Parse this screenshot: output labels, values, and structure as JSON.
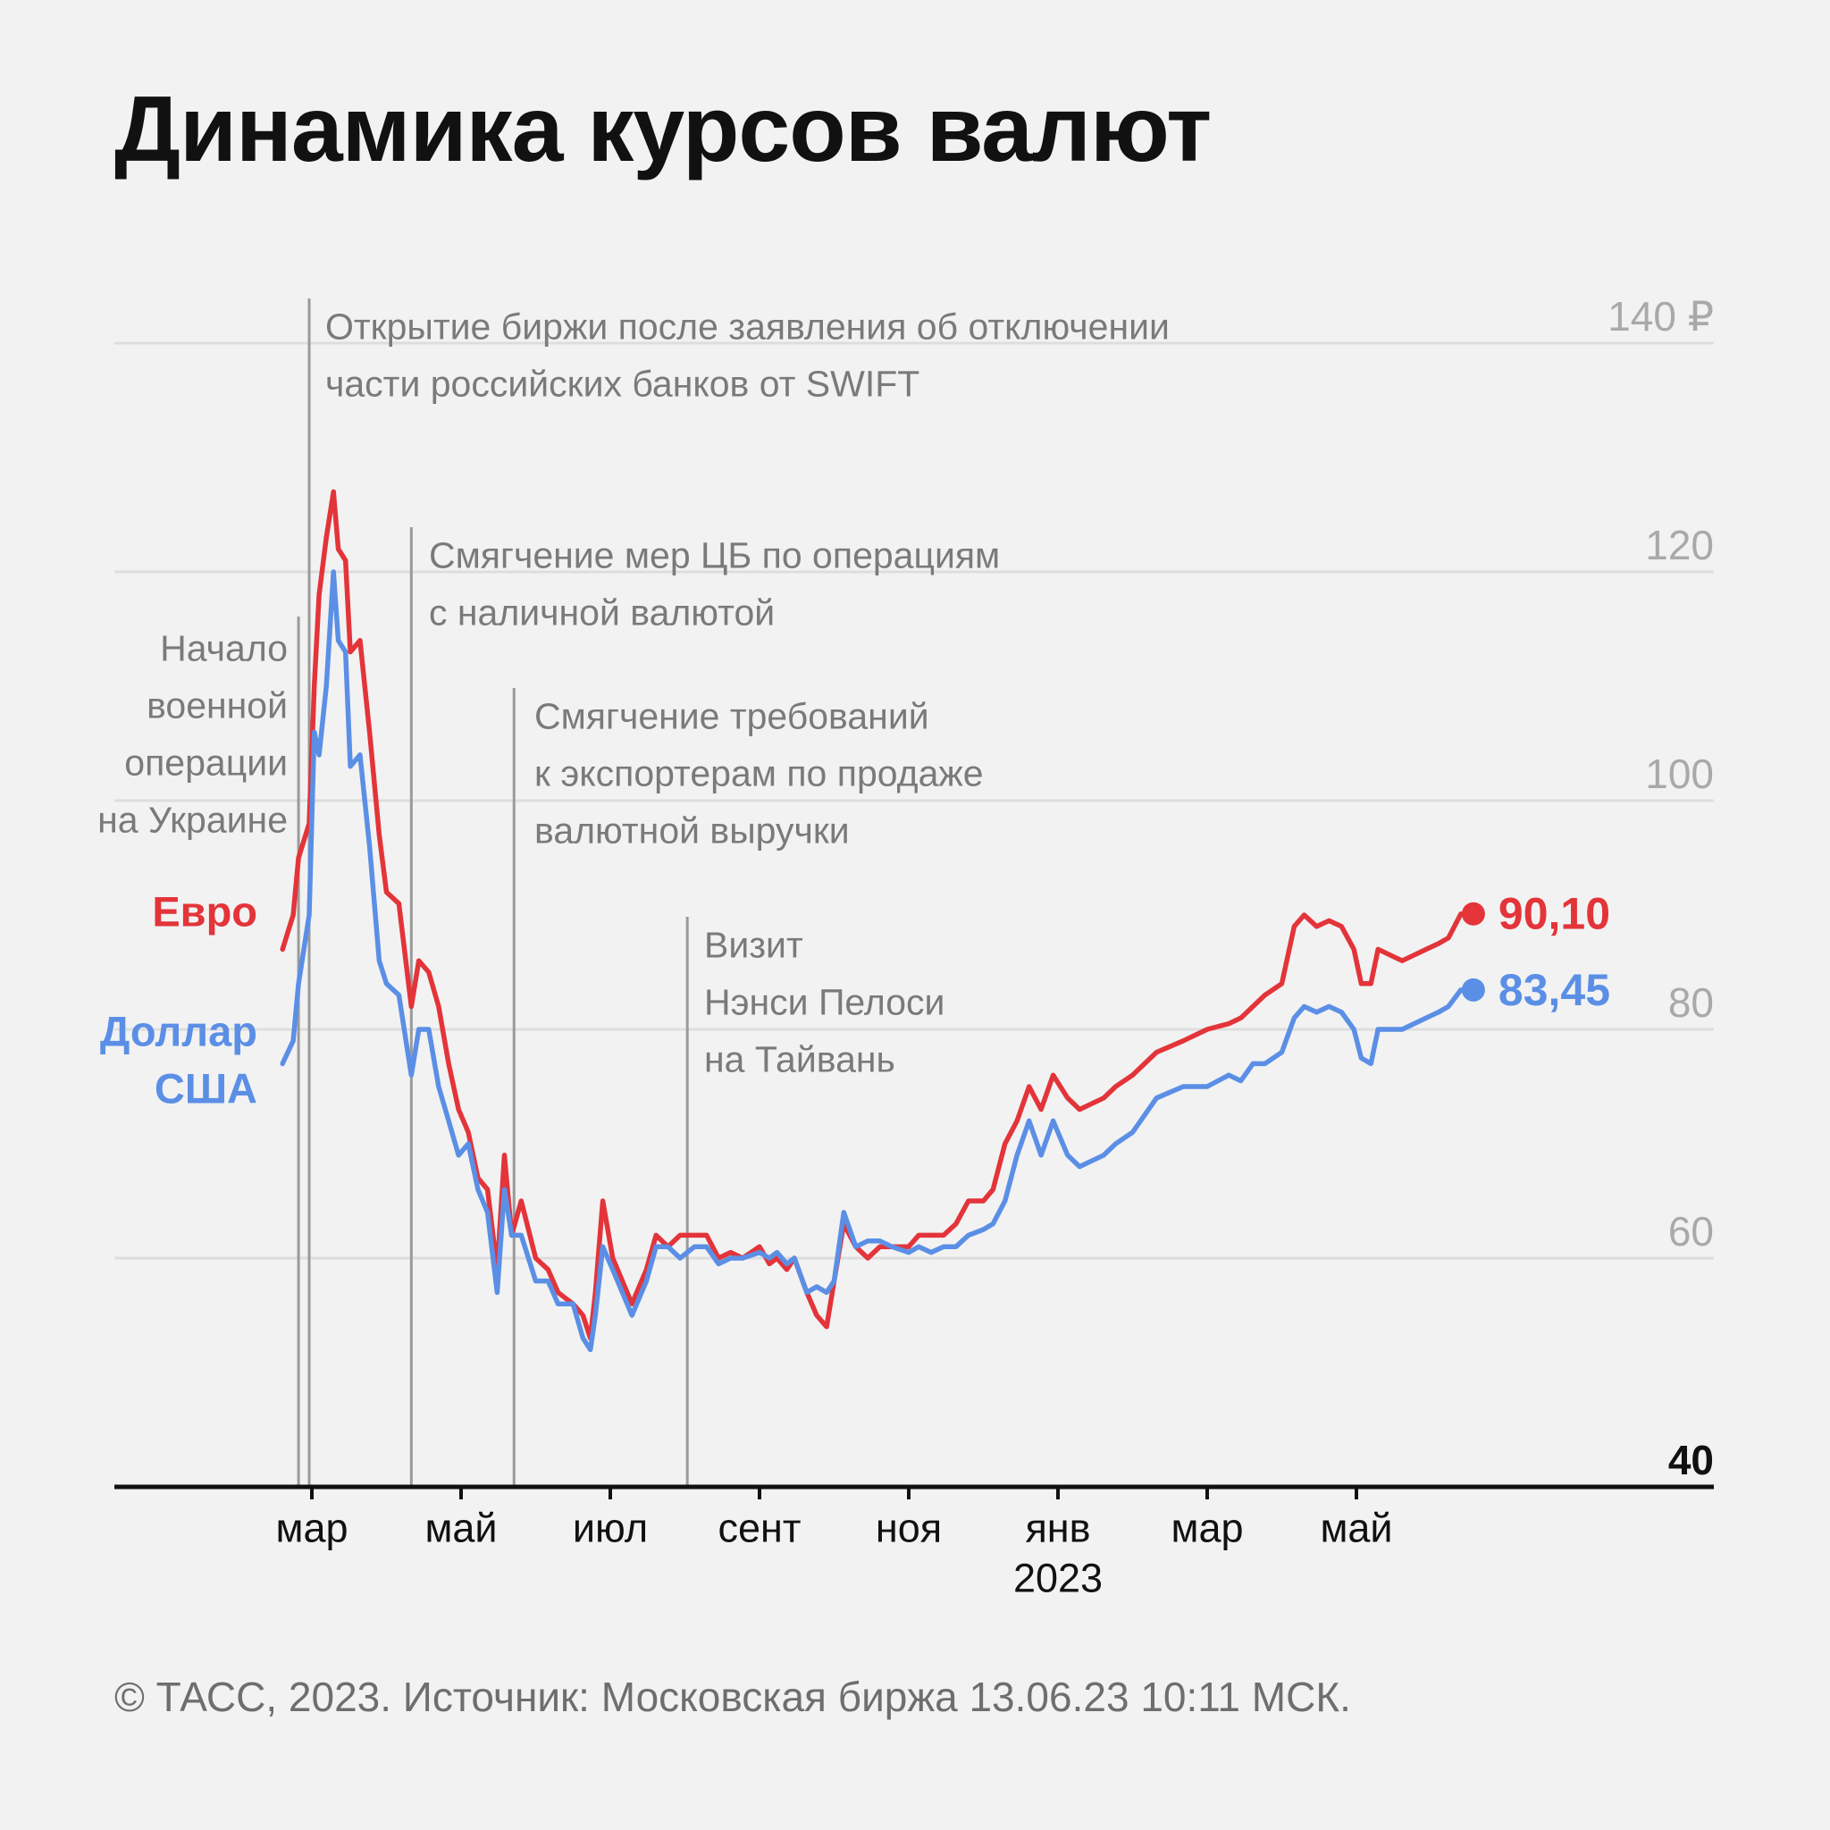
{
  "title": "Динамика курсов валют",
  "source": "© ТАСС, 2023. Источник: Московская биржа 13.06.23 10:11 МСК.",
  "chart_data": {
    "type": "line",
    "title": "Динамика курсов валют",
    "xlabel": "",
    "ylabel": "",
    "ylim": [
      40,
      140
    ],
    "yticks": [
      {
        "value": 140,
        "label": "140 ₽"
      },
      {
        "value": 120,
        "label": "120"
      },
      {
        "value": 100,
        "label": "100"
      },
      {
        "value": 80,
        "label": "80"
      },
      {
        "value": 60,
        "label": "60"
      },
      {
        "value": 40,
        "label": "40"
      }
    ],
    "xlim": [
      "2022-02-01",
      "2023-07-31"
    ],
    "xticks": [
      {
        "date": "2022-03-01",
        "label": "мар",
        "sublabel": ""
      },
      {
        "date": "2022-05-01",
        "label": "май",
        "sublabel": ""
      },
      {
        "date": "2022-07-01",
        "label": "июл",
        "sublabel": ""
      },
      {
        "date": "2022-09-01",
        "label": "сент",
        "sublabel": ""
      },
      {
        "date": "2022-11-01",
        "label": "ноя",
        "sublabel": ""
      },
      {
        "date": "2023-01-01",
        "label": "янв",
        "sublabel": "2023"
      },
      {
        "date": "2023-03-01",
        "label": "мар",
        "sublabel": ""
      },
      {
        "date": "2023-05-01",
        "label": "май",
        "sublabel": ""
      }
    ],
    "grid": true,
    "colors": {
      "euro": "#e3343a",
      "usd": "#5b8fe6",
      "annotation": "#7a7a7a",
      "gridline": "#dddddd",
      "axis": "#111111"
    },
    "series": [
      {
        "name": "Евро",
        "label_lines": [
          "Евро"
        ],
        "color": "#e3343a",
        "last_label": "90,10",
        "points": [
          [
            "2022-02-18",
            87
          ],
          [
            "2022-02-22",
            90
          ],
          [
            "2022-02-24",
            95
          ],
          [
            "2022-02-28",
            98
          ],
          [
            "2022-03-02",
            110
          ],
          [
            "2022-03-04",
            118
          ],
          [
            "2022-03-07",
            123
          ],
          [
            "2022-03-10",
            127
          ],
          [
            "2022-03-12",
            122
          ],
          [
            "2022-03-15",
            121
          ],
          [
            "2022-03-17",
            113
          ],
          [
            "2022-03-21",
            114
          ],
          [
            "2022-03-25",
            106
          ],
          [
            "2022-03-29",
            97
          ],
          [
            "2022-04-01",
            92
          ],
          [
            "2022-04-06",
            91
          ],
          [
            "2022-04-11",
            82
          ],
          [
            "2022-04-14",
            86
          ],
          [
            "2022-04-18",
            85
          ],
          [
            "2022-04-22",
            82
          ],
          [
            "2022-04-26",
            77
          ],
          [
            "2022-04-30",
            73
          ],
          [
            "2022-05-04",
            71
          ],
          [
            "2022-05-08",
            67
          ],
          [
            "2022-05-12",
            66
          ],
          [
            "2022-05-16",
            59
          ],
          [
            "2022-05-19",
            69
          ],
          [
            "2022-05-22",
            62
          ],
          [
            "2022-05-26",
            65
          ],
          [
            "2022-06-01",
            60
          ],
          [
            "2022-06-06",
            59
          ],
          [
            "2022-06-10",
            57
          ],
          [
            "2022-06-16",
            56
          ],
          [
            "2022-06-20",
            55
          ],
          [
            "2022-06-23",
            53
          ],
          [
            "2022-06-25",
            57
          ],
          [
            "2022-06-28",
            65
          ],
          [
            "2022-07-02",
            60
          ],
          [
            "2022-07-06",
            58
          ],
          [
            "2022-07-10",
            56
          ],
          [
            "2022-07-16",
            59
          ],
          [
            "2022-07-20",
            62
          ],
          [
            "2022-07-25",
            61
          ],
          [
            "2022-07-30",
            62
          ],
          [
            "2022-08-05",
            62
          ],
          [
            "2022-08-10",
            62
          ],
          [
            "2022-08-15",
            60
          ],
          [
            "2022-08-20",
            60.5
          ],
          [
            "2022-08-25",
            60
          ],
          [
            "2022-09-01",
            61
          ],
          [
            "2022-09-05",
            59.5
          ],
          [
            "2022-09-08",
            60
          ],
          [
            "2022-09-12",
            59
          ],
          [
            "2022-09-15",
            60
          ],
          [
            "2022-09-20",
            57
          ],
          [
            "2022-09-24",
            55
          ],
          [
            "2022-09-28",
            54
          ],
          [
            "2022-10-01",
            58
          ],
          [
            "2022-10-05",
            63
          ],
          [
            "2022-10-10",
            61
          ],
          [
            "2022-10-15",
            60
          ],
          [
            "2022-10-20",
            61
          ],
          [
            "2022-10-25",
            61
          ],
          [
            "2022-11-01",
            61
          ],
          [
            "2022-11-05",
            62
          ],
          [
            "2022-11-10",
            62
          ],
          [
            "2022-11-15",
            62
          ],
          [
            "2022-11-20",
            63
          ],
          [
            "2022-11-25",
            65
          ],
          [
            "2022-12-01",
            65
          ],
          [
            "2022-12-05",
            66
          ],
          [
            "2022-12-10",
            70
          ],
          [
            "2022-12-15",
            72
          ],
          [
            "2022-12-20",
            75
          ],
          [
            "2022-12-25",
            73
          ],
          [
            "2022-12-30",
            76
          ],
          [
            "2023-01-05",
            74
          ],
          [
            "2023-01-10",
            73
          ],
          [
            "2023-01-15",
            73.5
          ],
          [
            "2023-01-20",
            74
          ],
          [
            "2023-01-25",
            75
          ],
          [
            "2023-02-01",
            76
          ],
          [
            "2023-02-10",
            78
          ],
          [
            "2023-02-20",
            79
          ],
          [
            "2023-03-01",
            80
          ],
          [
            "2023-03-10",
            80.5
          ],
          [
            "2023-03-15",
            81
          ],
          [
            "2023-03-20",
            82
          ],
          [
            "2023-03-25",
            83
          ],
          [
            "2023-04-01",
            84
          ],
          [
            "2023-04-06",
            89
          ],
          [
            "2023-04-10",
            90
          ],
          [
            "2023-04-15",
            89
          ],
          [
            "2023-04-20",
            89.5
          ],
          [
            "2023-04-25",
            89
          ],
          [
            "2023-04-30",
            87
          ],
          [
            "2023-05-03",
            84
          ],
          [
            "2023-05-07",
            84
          ],
          [
            "2023-05-10",
            87
          ],
          [
            "2023-05-15",
            86.5
          ],
          [
            "2023-05-20",
            86
          ],
          [
            "2023-05-25",
            86.5
          ],
          [
            "2023-05-30",
            87
          ],
          [
            "2023-06-04",
            87.5
          ],
          [
            "2023-06-08",
            88
          ],
          [
            "2023-06-13",
            90.1
          ]
        ]
      },
      {
        "name": "Доллар США",
        "label_lines": [
          "Доллар",
          "США"
        ],
        "color": "#5b8fe6",
        "last_label": "83,45",
        "points": [
          [
            "2022-02-18",
            77
          ],
          [
            "2022-02-22",
            79
          ],
          [
            "2022-02-24",
            84
          ],
          [
            "2022-02-28",
            90
          ],
          [
            "2022-03-02",
            106
          ],
          [
            "2022-03-04",
            104
          ],
          [
            "2022-03-07",
            110
          ],
          [
            "2022-03-10",
            120
          ],
          [
            "2022-03-12",
            114
          ],
          [
            "2022-03-15",
            113
          ],
          [
            "2022-03-17",
            103
          ],
          [
            "2022-03-21",
            104
          ],
          [
            "2022-03-25",
            96
          ],
          [
            "2022-03-29",
            86
          ],
          [
            "2022-04-01",
            84
          ],
          [
            "2022-04-06",
            83
          ],
          [
            "2022-04-11",
            76
          ],
          [
            "2022-04-14",
            80
          ],
          [
            "2022-04-18",
            80
          ],
          [
            "2022-04-22",
            75
          ],
          [
            "2022-04-26",
            72
          ],
          [
            "2022-04-30",
            69
          ],
          [
            "2022-05-04",
            70
          ],
          [
            "2022-05-08",
            66
          ],
          [
            "2022-05-12",
            64
          ],
          [
            "2022-05-16",
            57
          ],
          [
            "2022-05-19",
            66
          ],
          [
            "2022-05-22",
            62
          ],
          [
            "2022-05-26",
            62
          ],
          [
            "2022-06-01",
            58
          ],
          [
            "2022-06-06",
            58
          ],
          [
            "2022-06-10",
            56
          ],
          [
            "2022-06-16",
            56
          ],
          [
            "2022-06-20",
            53
          ],
          [
            "2022-06-23",
            52
          ],
          [
            "2022-06-25",
            55
          ],
          [
            "2022-06-28",
            61
          ],
          [
            "2022-07-02",
            59
          ],
          [
            "2022-07-06",
            57
          ],
          [
            "2022-07-10",
            55
          ],
          [
            "2022-07-16",
            58
          ],
          [
            "2022-07-20",
            61
          ],
          [
            "2022-07-25",
            61
          ],
          [
            "2022-07-30",
            60
          ],
          [
            "2022-08-05",
            61
          ],
          [
            "2022-08-10",
            61
          ],
          [
            "2022-08-15",
            59.5
          ],
          [
            "2022-08-20",
            60
          ],
          [
            "2022-08-25",
            60
          ],
          [
            "2022-09-01",
            60.5
          ],
          [
            "2022-09-05",
            60
          ],
          [
            "2022-09-08",
            60.5
          ],
          [
            "2022-09-12",
            59.5
          ],
          [
            "2022-09-15",
            60
          ],
          [
            "2022-09-20",
            57
          ],
          [
            "2022-09-24",
            57.5
          ],
          [
            "2022-09-28",
            57
          ],
          [
            "2022-10-01",
            58
          ],
          [
            "2022-10-05",
            64
          ],
          [
            "2022-10-10",
            61
          ],
          [
            "2022-10-15",
            61.5
          ],
          [
            "2022-10-20",
            61.5
          ],
          [
            "2022-10-25",
            61
          ],
          [
            "2022-11-01",
            60.5
          ],
          [
            "2022-11-05",
            61
          ],
          [
            "2022-11-10",
            60.5
          ],
          [
            "2022-11-15",
            61
          ],
          [
            "2022-11-20",
            61
          ],
          [
            "2022-11-25",
            62
          ],
          [
            "2022-12-01",
            62.5
          ],
          [
            "2022-12-05",
            63
          ],
          [
            "2022-12-10",
            65
          ],
          [
            "2022-12-15",
            69
          ],
          [
            "2022-12-20",
            72
          ],
          [
            "2022-12-25",
            69
          ],
          [
            "2022-12-30",
            72
          ],
          [
            "2023-01-05",
            69
          ],
          [
            "2023-01-10",
            68
          ],
          [
            "2023-01-15",
            68.5
          ],
          [
            "2023-01-20",
            69
          ],
          [
            "2023-01-25",
            70
          ],
          [
            "2023-02-01",
            71
          ],
          [
            "2023-02-10",
            74
          ],
          [
            "2023-02-20",
            75
          ],
          [
            "2023-03-01",
            75
          ],
          [
            "2023-03-10",
            76
          ],
          [
            "2023-03-15",
            75.5
          ],
          [
            "2023-03-20",
            77
          ],
          [
            "2023-03-25",
            77
          ],
          [
            "2023-04-01",
            78
          ],
          [
            "2023-04-06",
            81
          ],
          [
            "2023-04-10",
            82
          ],
          [
            "2023-04-15",
            81.5
          ],
          [
            "2023-04-20",
            82
          ],
          [
            "2023-04-25",
            81.5
          ],
          [
            "2023-04-30",
            80
          ],
          [
            "2023-05-03",
            77.5
          ],
          [
            "2023-05-07",
            77
          ],
          [
            "2023-05-10",
            80
          ],
          [
            "2023-05-15",
            80
          ],
          [
            "2023-05-20",
            80
          ],
          [
            "2023-05-25",
            80.5
          ],
          [
            "2023-05-30",
            81
          ],
          [
            "2023-06-04",
            81.5
          ],
          [
            "2023-06-08",
            82
          ],
          [
            "2023-06-13",
            83.45
          ]
        ]
      }
    ],
    "annotations": [
      {
        "date": "2022-02-24",
        "lines": [
          "Начало",
          "военной",
          "операции",
          "на Украине"
        ],
        "align": "left"
      },
      {
        "date": "2022-02-28",
        "lines": [
          "Открытие биржи после заявления об отключении",
          "части российских банков от SWIFT"
        ],
        "align": "right"
      },
      {
        "date": "2022-04-11",
        "lines": [
          "Смягчение мер ЦБ по операциям",
          "с наличной валютой"
        ],
        "align": "right"
      },
      {
        "date": "2022-05-23",
        "lines": [
          "Смягчение требований",
          "к экспортерам по продаже",
          "валютной выручки"
        ],
        "align": "right"
      },
      {
        "date": "2022-08-02",
        "lines": [
          "Визит",
          "Нэнси Пелоси",
          "на Тайвань"
        ],
        "align": "right"
      }
    ]
  }
}
